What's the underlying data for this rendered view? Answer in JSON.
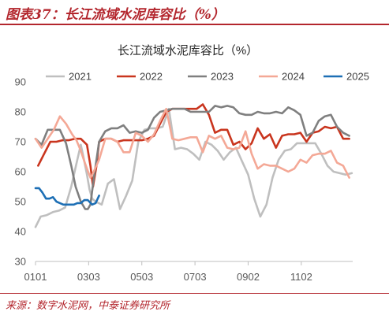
{
  "figure_title": "图表37：长江流域水泥库容比（%）",
  "source": "来源：数字水泥网，中泰证券研究所",
  "chart_data": {
    "type": "line",
    "title": "长江流域水泥库容比（%）",
    "xlabel": "",
    "ylabel": "",
    "ylim": [
      30,
      90
    ],
    "yticks": [
      30,
      40,
      50,
      60,
      70,
      80,
      90
    ],
    "xlim": [
      1,
      365
    ],
    "xticks": [
      {
        "label": "0101",
        "day": 1
      },
      {
        "label": "0303",
        "day": 62
      },
      {
        "label": "0503",
        "day": 123
      },
      {
        "label": "0703",
        "day": 184
      },
      {
        "label": "0902",
        "day": 245
      },
      {
        "label": "1102",
        "day": 306
      }
    ],
    "grid": false,
    "legend": "top",
    "series": [
      {
        "name": "2021",
        "color": "#bfbfbf",
        "x": [
          1,
          7,
          14,
          21,
          28,
          35,
          42,
          49,
          53,
          56,
          60,
          63,
          66,
          70,
          77,
          84,
          91,
          98,
          105,
          112,
          119,
          126,
          133,
          140,
          147,
          154,
          161,
          168,
          175,
          182,
          189,
          196,
          203,
          210,
          217,
          224,
          231,
          238,
          245,
          252,
          259,
          266,
          273,
          280,
          287,
          294,
          301,
          308,
          315,
          322,
          329,
          336,
          343,
          350,
          357,
          364
        ],
        "y": [
          41.5,
          45,
          45.5,
          46.5,
          47,
          48,
          55,
          64,
          69,
          65,
          59,
          54,
          51,
          50,
          49,
          56,
          57.5,
          47.5,
          52,
          57,
          70,
          74,
          74.5,
          74.5,
          75,
          81,
          67.5,
          68,
          67.5,
          66,
          64,
          70,
          69,
          67,
          64,
          66.5,
          68,
          63.5,
          59,
          51,
          45,
          49,
          58,
          64,
          67,
          67.5,
          69.5,
          69.5,
          69.5,
          69.5,
          66,
          62,
          60,
          59.5,
          59,
          59.5
        ]
      },
      {
        "name": "2022",
        "color": "#c9351e",
        "x": [
          4,
          11,
          18,
          25,
          32,
          39,
          46,
          53,
          60,
          64,
          67,
          71,
          74,
          81,
          88,
          95,
          102,
          109,
          116,
          123,
          130,
          137,
          144,
          151,
          158,
          165,
          172,
          179,
          186,
          193,
          200,
          207,
          214,
          221,
          228,
          235,
          242,
          249,
          256,
          263,
          270,
          277,
          284,
          291,
          298,
          305,
          312,
          319,
          326,
          333,
          340,
          347,
          354,
          361
        ],
        "y": [
          62,
          66,
          70,
          70,
          70.5,
          70.5,
          71,
          71,
          69,
          62,
          55,
          62,
          70,
          71,
          71,
          70,
          70.5,
          70.5,
          70.5,
          70.5,
          71,
          72,
          76,
          80,
          81,
          81,
          81,
          81,
          81,
          82.5,
          79,
          73,
          74,
          74,
          69,
          70,
          67.5,
          69.5,
          74.5,
          71,
          72.5,
          68,
          72,
          72.5,
          72.5,
          73,
          70,
          73,
          73.5,
          75,
          74.5,
          75,
          71,
          71
        ]
      },
      {
        "name": "2023",
        "color": "#7f7f7f",
        "x": [
          1,
          8,
          15,
          22,
          29,
          36,
          42,
          47,
          53,
          58,
          61,
          64,
          68,
          74,
          81,
          88,
          95,
          102,
          109,
          116,
          123,
          130,
          137,
          144,
          151,
          158,
          165,
          172,
          179,
          186,
          193,
          200,
          207,
          214,
          221,
          228,
          235,
          242,
          249,
          256,
          263,
          270,
          277,
          284,
          291,
          298,
          305,
          312,
          319,
          326,
          333,
          340,
          347,
          354,
          361
        ],
        "y": [
          71,
          69,
          74,
          74,
          74,
          69.5,
          62,
          55,
          50,
          47.5,
          47.5,
          49,
          58,
          70,
          73.5,
          74.5,
          74.5,
          75.5,
          73,
          73.5,
          73,
          74,
          78,
          80,
          80.5,
          81,
          81,
          81,
          80,
          80,
          80,
          80,
          82,
          81.5,
          82,
          81.5,
          79.5,
          79,
          79,
          80,
          79.5,
          79.5,
          80,
          79.5,
          81.5,
          80.5,
          79,
          72,
          73,
          77,
          78.5,
          79,
          75,
          73,
          72
        ]
      },
      {
        "name": "2024",
        "color": "#f4a896",
        "x": [
          1,
          8,
          15,
          22,
          29,
          36,
          43,
          48,
          53,
          57,
          60,
          64,
          67,
          74,
          81,
          88,
          95,
          102,
          109,
          116,
          123,
          130,
          137,
          144,
          151,
          158,
          165,
          172,
          179,
          186,
          193,
          200,
          207,
          214,
          221,
          228,
          235,
          242,
          249,
          256,
          263,
          270,
          277,
          284,
          291,
          298,
          305,
          312,
          319,
          326,
          333,
          340,
          347,
          354,
          361
        ],
        "y": [
          71,
          68,
          71,
          74,
          78.5,
          76,
          72.5,
          70.5,
          67,
          63.5,
          61,
          58,
          59.5,
          64,
          71,
          71,
          70,
          66.5,
          66.5,
          73,
          72,
          70,
          72.5,
          77,
          81,
          71,
          70.5,
          71,
          71.5,
          71.5,
          66.5,
          72,
          71,
          72,
          68,
          67.5,
          68,
          73.5,
          66,
          61,
          62.5,
          62,
          62,
          61,
          60,
          61,
          64,
          63,
          65.5,
          66,
          66,
          67,
          63,
          62,
          58
        ]
      },
      {
        "name": "2025",
        "color": "#1d6fb5",
        "x": [
          1,
          5,
          9,
          13,
          17,
          21,
          25,
          29,
          33,
          37,
          41,
          45,
          49,
          53,
          57,
          61,
          66,
          70,
          74
        ],
        "y": [
          54.5,
          54.5,
          53,
          51,
          51,
          51.5,
          50,
          49.5,
          49,
          49,
          49,
          49,
          49.5,
          49.5,
          50.5,
          50.5,
          49,
          49.5,
          52
        ]
      }
    ]
  }
}
